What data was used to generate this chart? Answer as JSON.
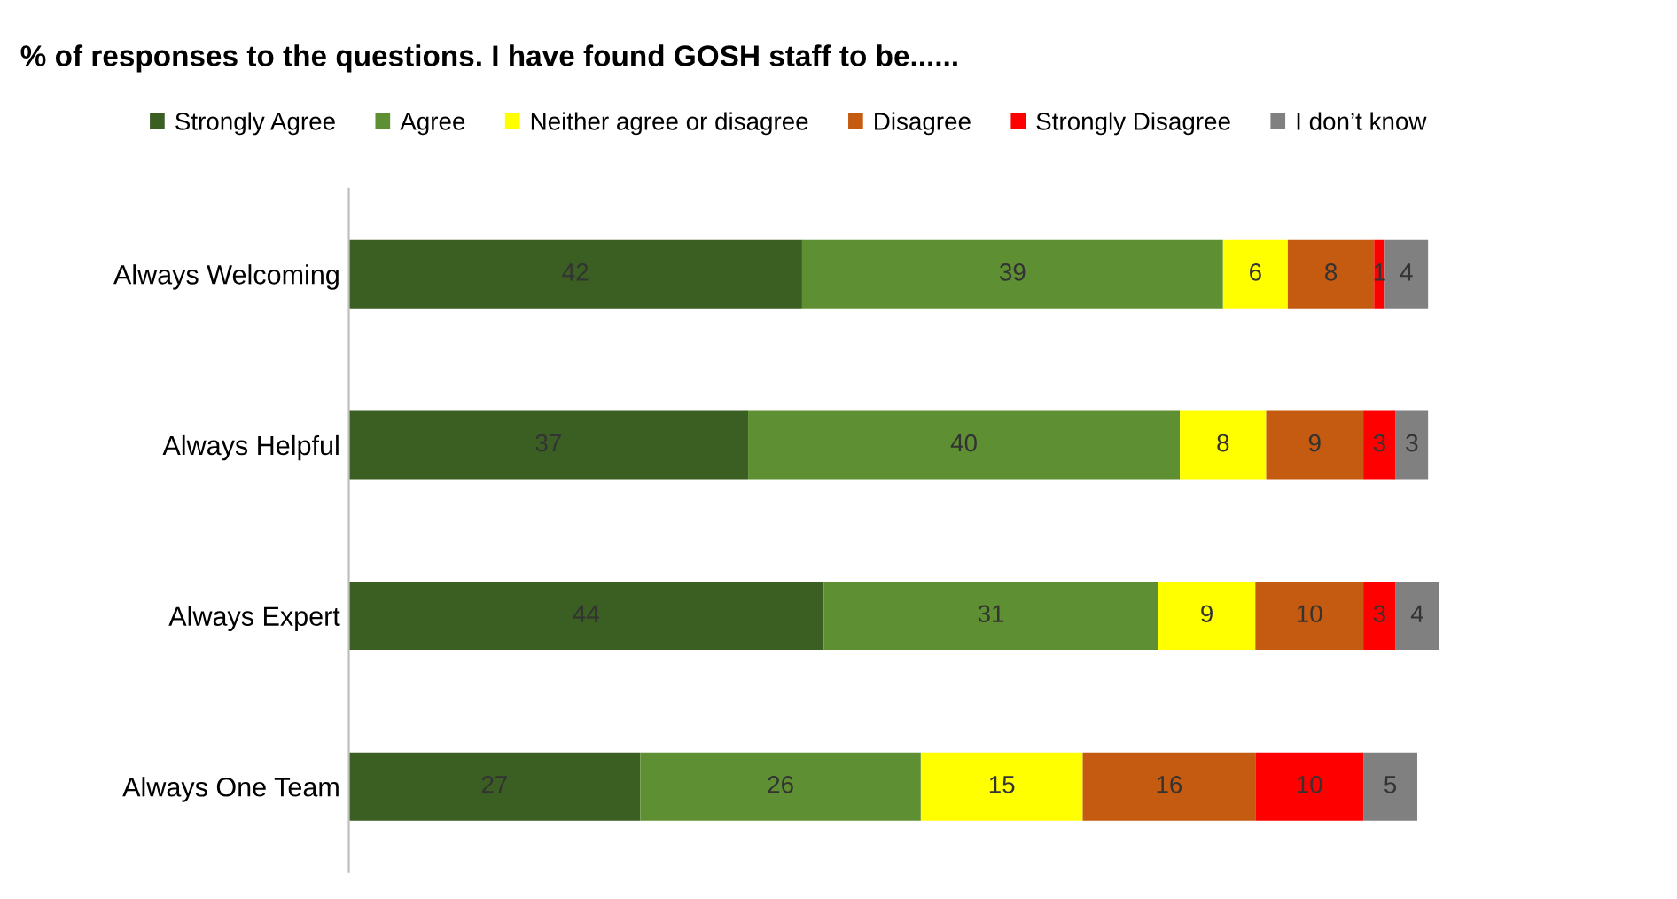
{
  "chart_data": {
    "type": "bar",
    "orientation": "horizontal",
    "stacked": true,
    "title": "% of responses to the questions. I have found GOSH staff to be......",
    "categories": [
      "Always Welcoming",
      "Always Helpful",
      "Always Expert",
      "Always One Team"
    ],
    "series": [
      {
        "name": "Strongly Agree",
        "color": "#3b5e23",
        "values": [
          42,
          37,
          44,
          27
        ]
      },
      {
        "name": "Agree",
        "color": "#5e8f32",
        "values": [
          39,
          40,
          31,
          26
        ]
      },
      {
        "name": "Neither agree or disagree",
        "color": "#ffff00",
        "values": [
          6,
          8,
          9,
          15
        ]
      },
      {
        "name": "Disagree",
        "color": "#c55a11",
        "values": [
          8,
          9,
          10,
          16
        ]
      },
      {
        "name": "Strongly Disagree",
        "color": "#ff0000",
        "values": [
          1,
          3,
          3,
          10
        ]
      },
      {
        "name": "I don’t know",
        "color": "#808080",
        "values": [
          4,
          3,
          4,
          5
        ]
      }
    ],
    "data_labels": true,
    "legend": "top",
    "grid": false,
    "tick_labels": "y"
  }
}
